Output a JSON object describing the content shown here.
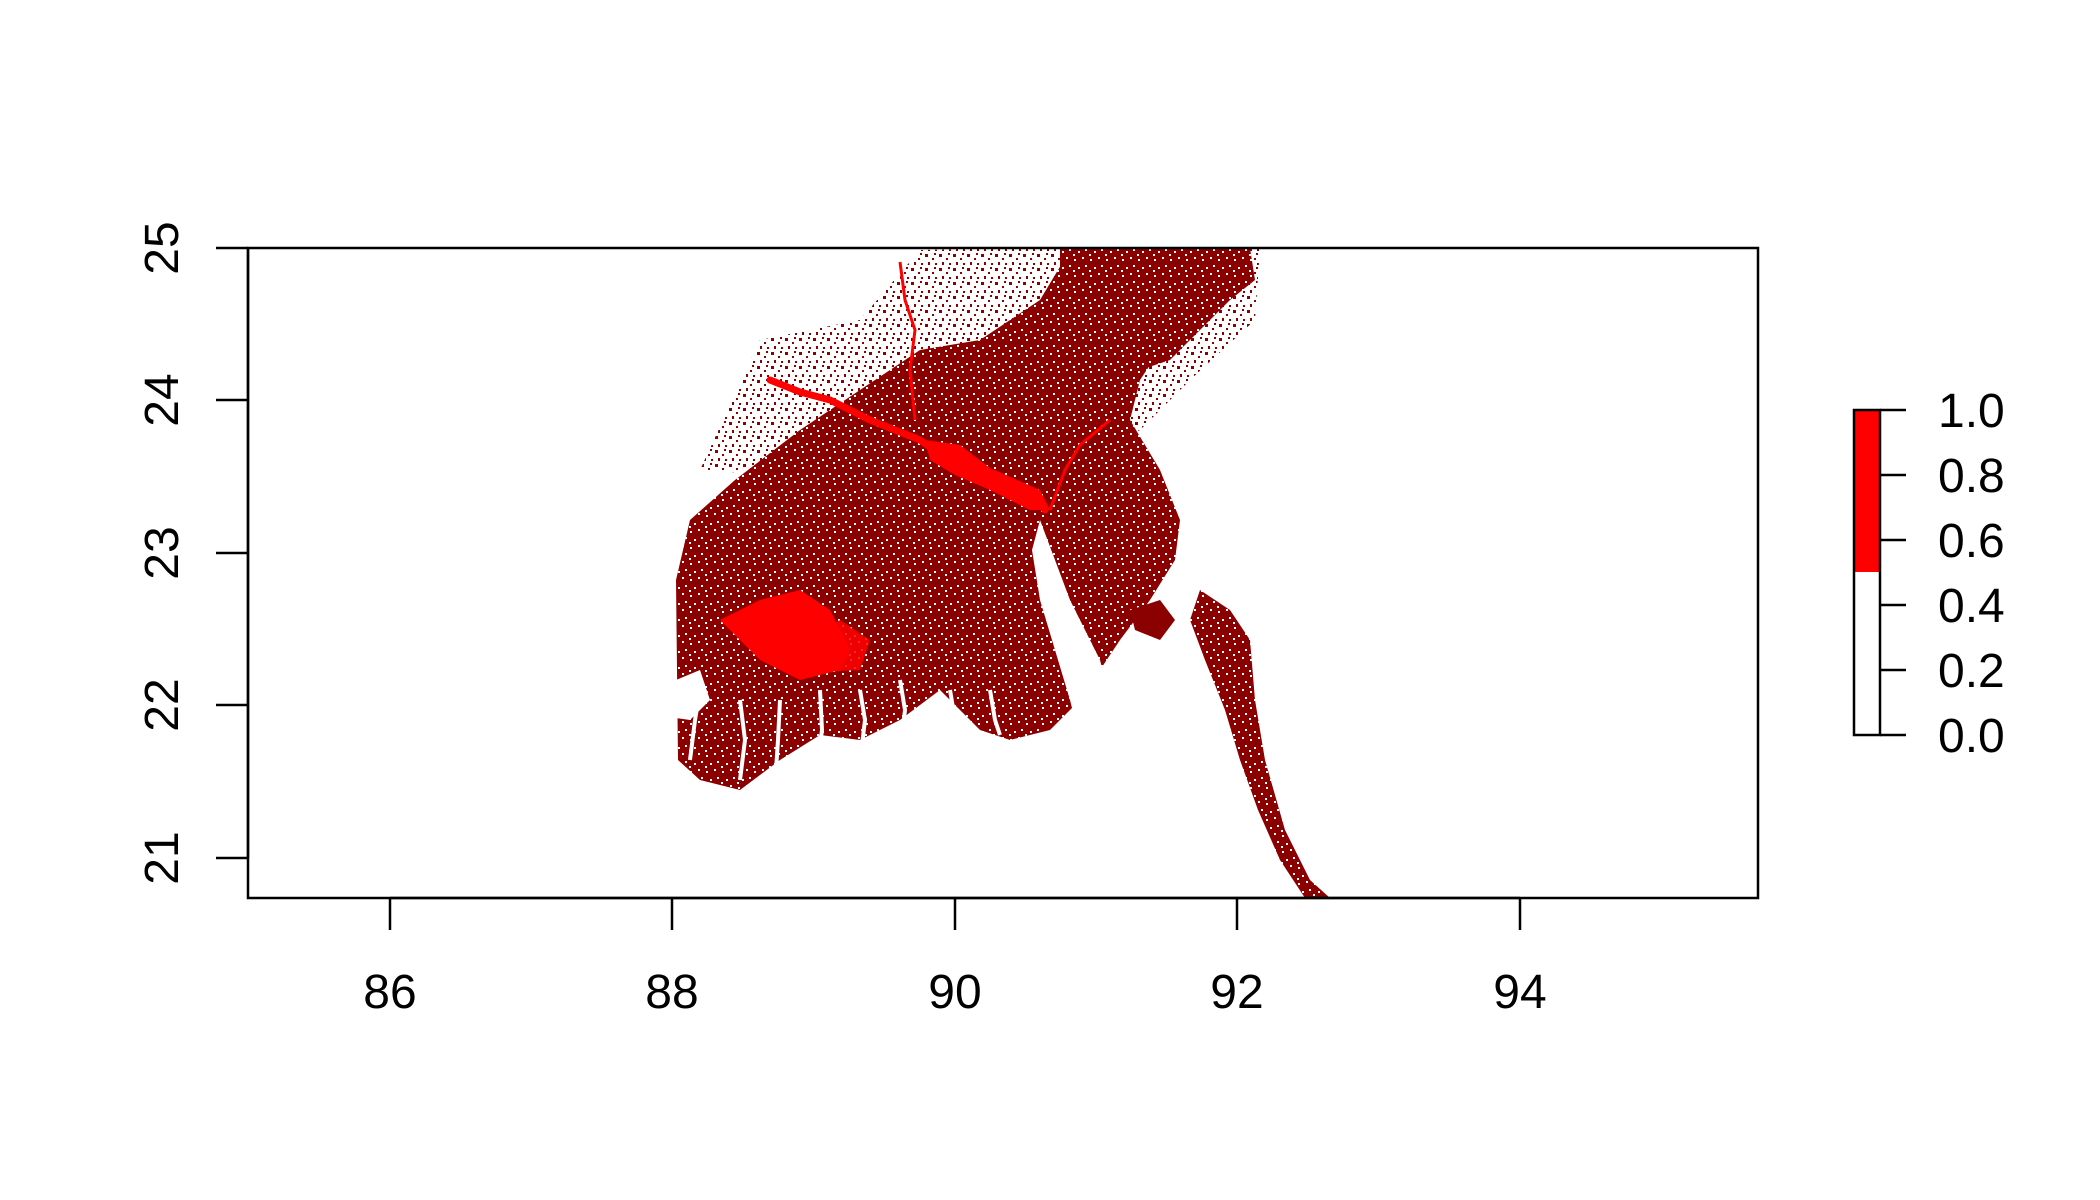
{
  "map": {
    "type": "raster",
    "x_ticks": [
      "86",
      "88",
      "90",
      "92",
      "94"
    ],
    "y_ticks": [
      "21",
      "22",
      "23",
      "24",
      "25"
    ],
    "x_range": [
      85.0,
      95.7
    ],
    "y_range": [
      20.75,
      25.0
    ],
    "colors": {
      "land_dark": "#8b0000",
      "land_bright": "#ff0000",
      "background": "#ffffff",
      "axis": "#000000"
    }
  },
  "legend": {
    "ticks": [
      "0.0",
      "0.2",
      "0.4",
      "0.6",
      "0.8",
      "1.0"
    ],
    "threshold": 0.5,
    "range": [
      0.0,
      1.0
    ],
    "colors": {
      "low": "#ffffff",
      "high": "#ff0000"
    }
  }
}
